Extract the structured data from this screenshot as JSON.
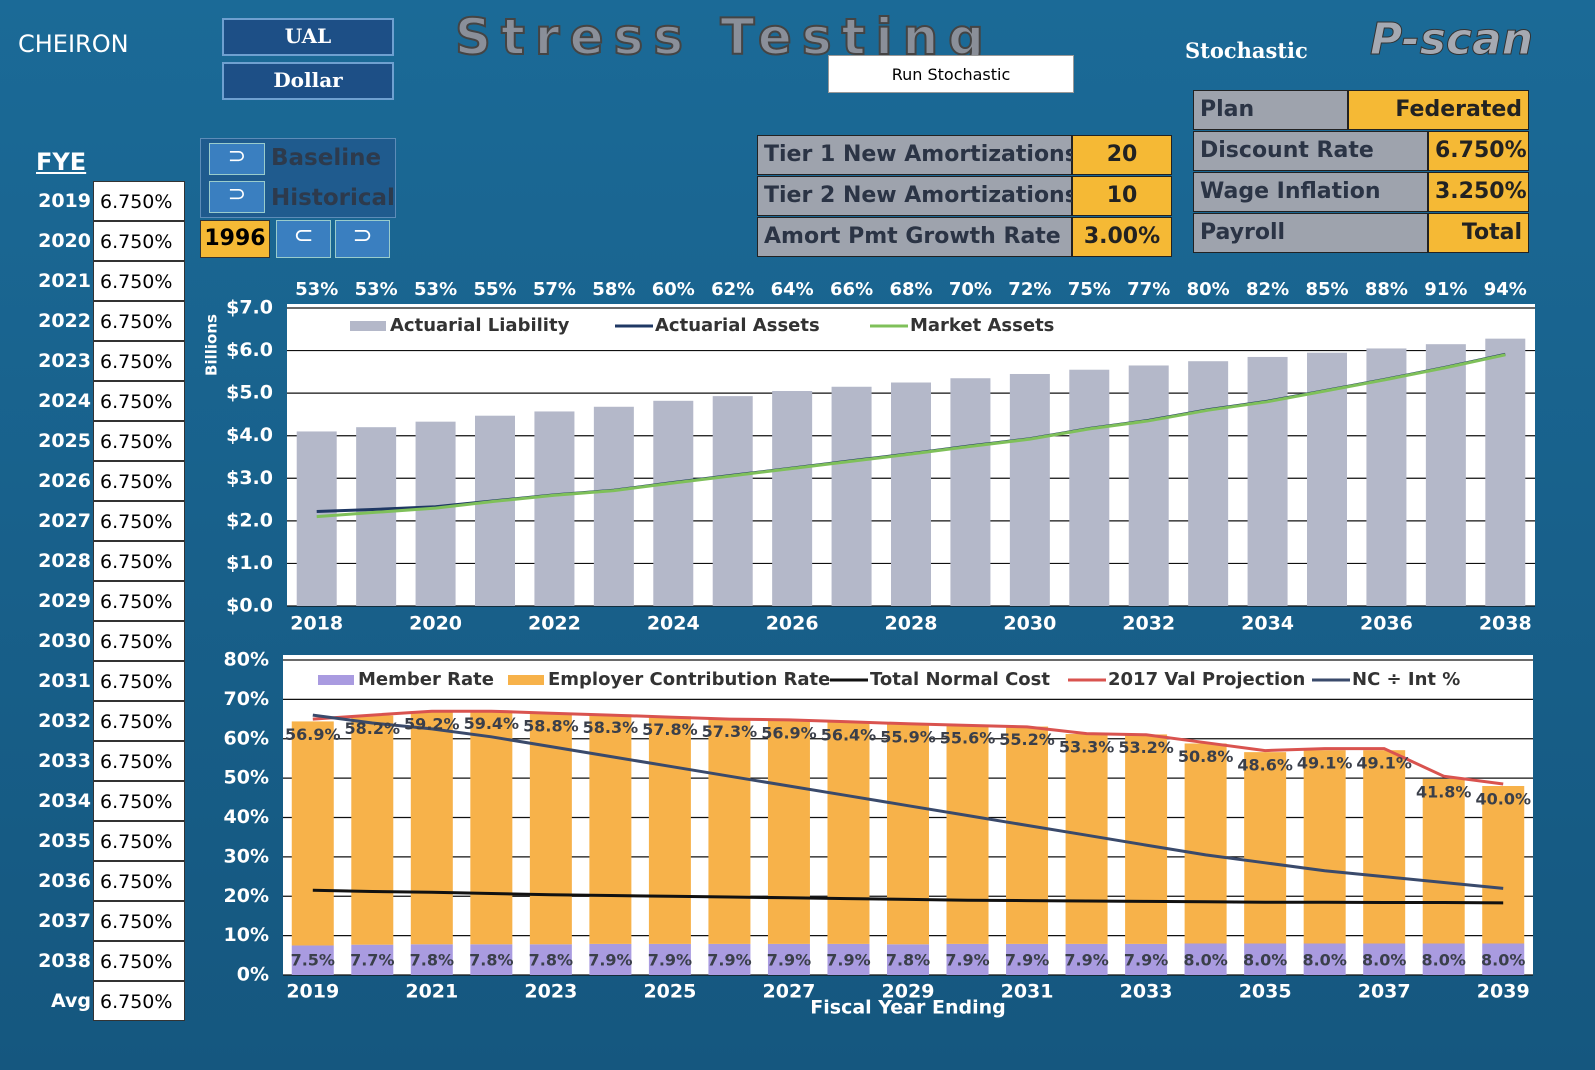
{
  "header": {
    "logo": "CHEIRON",
    "buttons": [
      "UAL",
      "Dollar"
    ],
    "title": "Stress Testing",
    "run_button": "Run Stochastic",
    "mode": "Stochastic",
    "brand": "P-scan"
  },
  "fye_table": {
    "label": "FYE",
    "rows": [
      [
        "2019",
        "6.750%"
      ],
      [
        "2020",
        "6.750%"
      ],
      [
        "2021",
        "6.750%"
      ],
      [
        "2022",
        "6.750%"
      ],
      [
        "2023",
        "6.750%"
      ],
      [
        "2024",
        "6.750%"
      ],
      [
        "2025",
        "6.750%"
      ],
      [
        "2026",
        "6.750%"
      ],
      [
        "2027",
        "6.750%"
      ],
      [
        "2028",
        "6.750%"
      ],
      [
        "2029",
        "6.750%"
      ],
      [
        "2030",
        "6.750%"
      ],
      [
        "2031",
        "6.750%"
      ],
      [
        "2032",
        "6.750%"
      ],
      [
        "2033",
        "6.750%"
      ],
      [
        "2034",
        "6.750%"
      ],
      [
        "2035",
        "6.750%"
      ],
      [
        "2036",
        "6.750%"
      ],
      [
        "2037",
        "6.750%"
      ],
      [
        "2038",
        "6.750%"
      ],
      [
        "Avg",
        "6.750%"
      ]
    ]
  },
  "scenario": {
    "options": [
      "Baseline",
      "Historical"
    ],
    "year": "1996"
  },
  "amortization": {
    "rows": [
      [
        "Tier 1 New Amortizations",
        "20"
      ],
      [
        "Tier 2 New Amortizations",
        "10"
      ],
      [
        "Amort Pmt Growth Rate",
        "3.00%"
      ]
    ]
  },
  "plan": {
    "rows": [
      [
        "Plan",
        "Federated"
      ],
      [
        "Discount Rate",
        "6.750%"
      ],
      [
        "Wage Inflation",
        "3.250%"
      ],
      [
        "Payroll",
        "Total"
      ]
    ]
  },
  "chart_data": [
    {
      "type": "bar_line",
      "ylabel": "Billions",
      "grid": true,
      "categories": [
        "2018",
        null,
        "2020",
        null,
        "2022",
        null,
        "2024",
        null,
        "2026",
        null,
        "2028",
        null,
        "2030",
        null,
        "2032",
        null,
        "2034",
        null,
        "2036",
        null,
        "2038"
      ],
      "top_labels": [
        "53%",
        "53%",
        "53%",
        "55%",
        "57%",
        "58%",
        "60%",
        "62%",
        "64%",
        "66%",
        "68%",
        "70%",
        "72%",
        "75%",
        "77%",
        "80%",
        "82%",
        "85%",
        "88%",
        "91%",
        "94%"
      ],
      "ylim": [
        0,
        7
      ],
      "yticks": [
        {
          "value": 0,
          "label": "$0.0"
        },
        {
          "value": 1,
          "label": "$1.0"
        },
        {
          "value": 2,
          "label": "$2.0"
        },
        {
          "value": 3,
          "label": "$3.0"
        },
        {
          "value": 4,
          "label": "$4.0"
        },
        {
          "value": 5,
          "label": "$5.0"
        },
        {
          "value": 6,
          "label": "$6.0"
        },
        {
          "value": 7,
          "label": "$7.0"
        }
      ],
      "series": [
        {
          "name": "Actuarial Liability",
          "type": "bar",
          "color": "#b4b8c9",
          "values": [
            4.1,
            4.2,
            4.33,
            4.47,
            4.57,
            4.68,
            4.82,
            4.93,
            5.05,
            5.15,
            5.25,
            5.35,
            5.45,
            5.55,
            5.65,
            5.75,
            5.85,
            5.95,
            6.05,
            6.15,
            6.28
          ]
        },
        {
          "name": "Actuarial Assets",
          "type": "line",
          "color": "#1f3864",
          "values": [
            2.22,
            2.27,
            2.33,
            2.47,
            2.61,
            2.72,
            2.9,
            3.07,
            3.24,
            3.41,
            3.58,
            3.76,
            3.93,
            4.17,
            4.36,
            4.61,
            4.81,
            5.07,
            5.33,
            5.61,
            5.91
          ]
        },
        {
          "name": "Market Assets",
          "type": "line",
          "color": "#7fc05a",
          "values": [
            2.1,
            2.2,
            2.3,
            2.46,
            2.6,
            2.71,
            2.89,
            3.06,
            3.23,
            3.4,
            3.57,
            3.75,
            3.92,
            4.16,
            4.35,
            4.6,
            4.8,
            5.06,
            5.32,
            5.6,
            5.9
          ]
        }
      ]
    },
    {
      "type": "bar_line",
      "xlabel": "Fiscal Year Ending",
      "grid": true,
      "categories": [
        "2019",
        null,
        "2021",
        null,
        "2023",
        null,
        "2025",
        null,
        "2027",
        null,
        "2029",
        null,
        "2031",
        null,
        "2033",
        null,
        "2035",
        null,
        "2037",
        null,
        "2039"
      ],
      "ylim": [
        0,
        80
      ],
      "yticks": [
        {
          "value": 0,
          "label": "0%"
        },
        {
          "value": 10,
          "label": "10%"
        },
        {
          "value": 20,
          "label": "20%"
        },
        {
          "value": 30,
          "label": "30%"
        },
        {
          "value": 40,
          "label": "40%"
        },
        {
          "value": 50,
          "label": "50%"
        },
        {
          "value": 60,
          "label": "60%"
        },
        {
          "value": 70,
          "label": "70%"
        },
        {
          "value": 80,
          "label": "80%"
        }
      ],
      "series": [
        {
          "name": "Member Rate",
          "type": "stacked_bar",
          "color": "#a99be0",
          "values": [
            7.5,
            7.7,
            7.8,
            7.8,
            7.8,
            7.9,
            7.9,
            7.9,
            7.9,
            7.9,
            7.8,
            7.9,
            7.9,
            7.9,
            7.9,
            8.0,
            8.0,
            8.0,
            8.0,
            8.0,
            8.0
          ],
          "value_labels": [
            "7.5%",
            "7.7%",
            "7.8%",
            "7.8%",
            "7.8%",
            "7.9%",
            "7.9%",
            "7.9%",
            "7.9%",
            "7.9%",
            "7.8%",
            "7.9%",
            "7.9%",
            "7.9%",
            "7.9%",
            "8.0%",
            "8.0%",
            "8.0%",
            "8.0%",
            "8.0%",
            "8.0%"
          ]
        },
        {
          "name": "Employer Contribution Rate",
          "type": "stacked_bar",
          "color": "#f7b24a",
          "values": [
            56.9,
            58.2,
            59.2,
            59.4,
            58.8,
            58.3,
            57.8,
            57.3,
            56.9,
            56.4,
            55.9,
            55.6,
            55.2,
            53.3,
            53.2,
            50.8,
            48.6,
            49.1,
            49.1,
            41.8,
            40.0
          ],
          "value_labels": [
            "56.9%",
            "58.2%",
            "59.2%",
            "59.4%",
            "58.8%",
            "58.3%",
            "57.8%",
            "57.3%",
            "56.9%",
            "56.4%",
            "55.9%",
            "55.6%",
            "55.2%",
            "53.3%",
            "53.2%",
            "50.8%",
            "48.6%",
            "49.1%",
            "49.1%",
            "41.8%",
            "40.0%"
          ]
        },
        {
          "name": "Total Normal Cost",
          "type": "line",
          "color": "#111111",
          "values": [
            21.5,
            21.2,
            21,
            20.7,
            20.4,
            20.2,
            20,
            19.8,
            19.6,
            19.4,
            19.2,
            19,
            18.9,
            18.8,
            18.7,
            18.6,
            18.5,
            18.5,
            18.4,
            18.4,
            18.3
          ]
        },
        {
          "name": "2017 Val Projection",
          "type": "line",
          "color": "#d9534f",
          "values": [
            65,
            66,
            67,
            67,
            66.5,
            66,
            65.5,
            65,
            64.8,
            64.3,
            63.8,
            63.4,
            63,
            61.3,
            61,
            59,
            57,
            57.5,
            57.5,
            50.5,
            48.5
          ]
        },
        {
          "name": "NC ÷ Int %",
          "type": "line",
          "color": "#3a4a6b",
          "values": [
            66,
            64,
            62.5,
            60.5,
            58,
            55.5,
            53,
            50.5,
            48,
            45.5,
            43,
            40.5,
            38,
            35.5,
            33,
            30.5,
            28.5,
            26.5,
            25,
            23.5,
            22
          ]
        }
      ]
    }
  ]
}
